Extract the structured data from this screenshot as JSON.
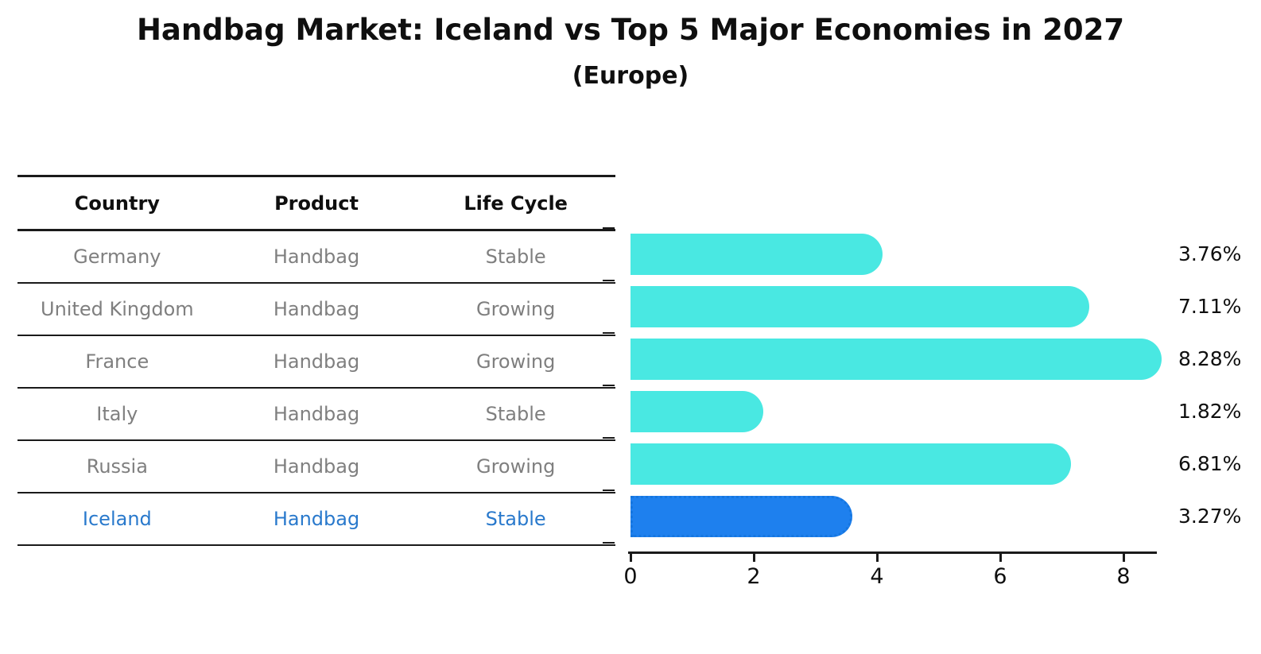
{
  "title": "Handbag Market: Iceland vs Top 5 Major Economies in 2027",
  "subtitle": "(Europe)",
  "table": {
    "headers": [
      "Country",
      "Product",
      "Life Cycle"
    ],
    "rows": [
      [
        "Germany",
        "Handbag",
        "Stable"
      ],
      [
        "United Kingdom",
        "Handbag",
        "Growing"
      ],
      [
        "France",
        "Handbag",
        "Growing"
      ],
      [
        "Italy",
        "Handbag",
        "Stable"
      ],
      [
        "Russia",
        "Handbag",
        "Growing"
      ],
      [
        "Iceland",
        "Handbag",
        "Stable"
      ]
    ],
    "highlight_row": 5
  },
  "chart_data": {
    "type": "bar",
    "orientation": "horizontal",
    "title": "Handbag Market: Iceland vs Top 5 Major Economies in 2027",
    "subtitle": "(Europe)",
    "categories": [
      "Germany",
      "United Kingdom",
      "France",
      "Italy",
      "Russia",
      "Iceland"
    ],
    "values": [
      3.76,
      7.11,
      8.28,
      1.82,
      6.81,
      3.27
    ],
    "value_labels": [
      "3.76%",
      "7.11%",
      "8.28%",
      "1.82%",
      "6.81%",
      "3.27%"
    ],
    "xticks": [
      0,
      2,
      4,
      6,
      8
    ],
    "xlim": [
      0,
      8.6
    ],
    "grid": false,
    "legend": "none",
    "highlight_index": 5,
    "colors": {
      "bar": "#49e8e2",
      "highlight_bar": "#1e80ee",
      "highlight_bar_border": "#1576e0",
      "highlight_text": "#2979cc",
      "table_text": "#7f7f7f",
      "text": "#0f0f0f"
    }
  }
}
